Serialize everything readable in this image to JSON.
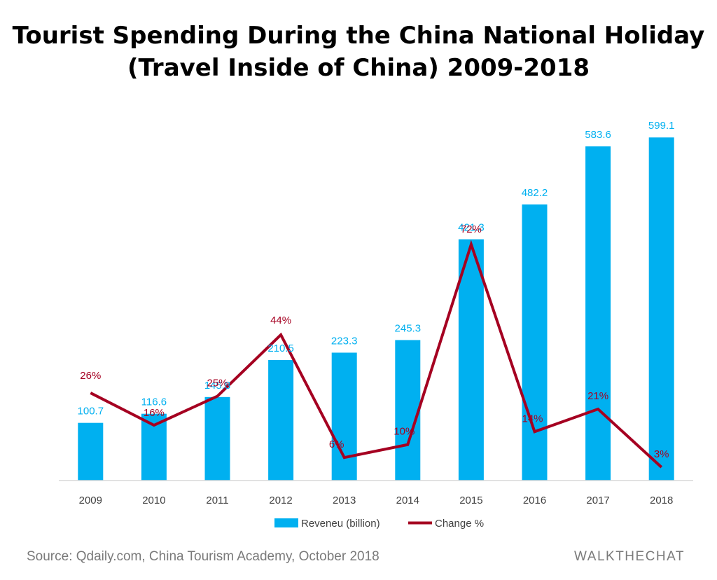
{
  "chart_data": {
    "type": "bar",
    "title_lines": [
      "Tourist Spending During the China National Holiday",
      "(Travel Inside of China) 2009-2018"
    ],
    "categories": [
      "2009",
      "2010",
      "2011",
      "2012",
      "2013",
      "2014",
      "2015",
      "2016",
      "2017",
      "2018"
    ],
    "series": [
      {
        "name": "Reveneu (billion)",
        "type": "bar",
        "color": "#00b0f0",
        "values": [
          100.7,
          116.6,
          145.8,
          210.5,
          223.3,
          245.3,
          421.3,
          482.2,
          583.6,
          599.1
        ],
        "labels": [
          "100.7",
          "116.6",
          "145.8",
          "210.5",
          "223.3",
          "245.3",
          "421.3",
          "482.2",
          "583.6",
          "599.1"
        ]
      },
      {
        "name": "Change %",
        "type": "line",
        "color": "#a50021",
        "values": [
          26,
          16,
          25,
          44,
          6,
          10,
          72,
          14,
          21,
          3
        ],
        "labels": [
          "26%",
          "16%",
          "25%",
          "44%",
          "6%",
          "10%",
          "72%",
          "14%",
          "21%",
          "3%"
        ]
      }
    ],
    "legend": "bottom",
    "grid": false
  },
  "source": "Source: Qdaily.com, China Tourism Academy, October 2018",
  "brand": "WALKTHECHAT"
}
